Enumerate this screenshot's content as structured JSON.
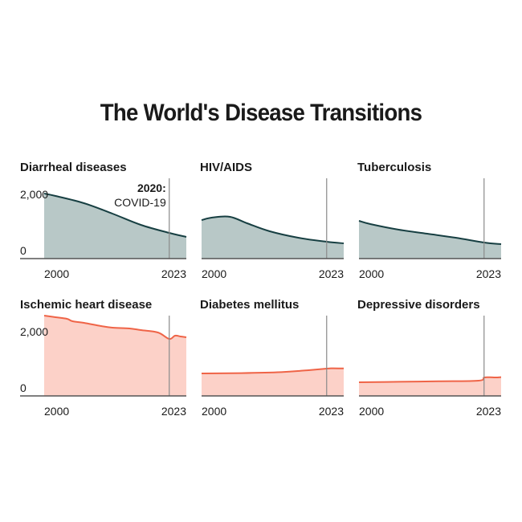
{
  "title": "The World's Disease Transitions",
  "chart_data": [
    {
      "type": "area",
      "title": "Diarrheal diseases",
      "group": "communicable",
      "x": [
        1998,
        2000,
        2005,
        2010,
        2015,
        2020,
        2023
      ],
      "values": [
        2025,
        1950,
        1725,
        1400,
        1050,
        800,
        675
      ],
      "ylim": [
        0,
        2000
      ],
      "yticks": [
        "0",
        "2,000"
      ],
      "xticks": [
        "2000",
        "2023"
      ],
      "marker_year": 2020,
      "annotation": {
        "bold": "2020:",
        "text": "COVID-19"
      }
    },
    {
      "type": "area",
      "title": "HIV/AIDS",
      "group": "communicable",
      "x": [
        1998,
        2000,
        2003,
        2006,
        2010,
        2015,
        2020,
        2023
      ],
      "values": [
        1200,
        1280,
        1300,
        1100,
        850,
        650,
        525,
        475
      ],
      "ylim": [
        0,
        2000
      ],
      "yticks": [],
      "xticks": [
        "2000",
        "2023"
      ],
      "marker_year": 2020
    },
    {
      "type": "area",
      "title": "Tuberculosis",
      "group": "communicable",
      "x": [
        1998,
        2000,
        2005,
        2010,
        2015,
        2020,
        2023
      ],
      "values": [
        1175,
        1075,
        900,
        775,
        650,
        500,
        450
      ],
      "ylim": [
        0,
        2000
      ],
      "yticks": [],
      "xticks": [
        "2000",
        "2023"
      ],
      "marker_year": 2020
    },
    {
      "type": "area",
      "title": "Ischemic heart disease",
      "group": "noncommunicable",
      "x": [
        1998,
        2000,
        2002,
        2003,
        2005,
        2008,
        2010,
        2013,
        2015,
        2018,
        2020,
        2021,
        2022,
        2023
      ],
      "values": [
        2500,
        2450,
        2400,
        2325,
        2275,
        2175,
        2125,
        2100,
        2050,
        1975,
        1775,
        1875,
        1850,
        1825
      ],
      "ylim": [
        0,
        2000
      ],
      "yticks": [
        "0",
        "2,000"
      ],
      "xticks": [
        "2000",
        "2023"
      ],
      "marker_year": 2020
    },
    {
      "type": "area",
      "title": "Diabetes mellitus",
      "group": "noncommunicable",
      "x": [
        1998,
        2005,
        2012,
        2016,
        2020,
        2021,
        2023
      ],
      "values": [
        700,
        710,
        740,
        790,
        850,
        860,
        855
      ],
      "ylim": [
        0,
        2000
      ],
      "yticks": [],
      "xticks": [
        "2000",
        "2023"
      ],
      "marker_year": 2020
    },
    {
      "type": "area",
      "title": "Depressive disorders",
      "group": "noncommunicable",
      "x": [
        1998,
        2005,
        2012,
        2019,
        2020,
        2021,
        2022,
        2023
      ],
      "values": [
        425,
        440,
        455,
        475,
        570,
        580,
        575,
        585
      ],
      "ylim": [
        0,
        2000
      ],
      "yticks": [],
      "xticks": [
        "2000",
        "2023"
      ],
      "marker_year": 2020
    }
  ],
  "colors": {
    "communicable_fill": "#b8c8c7",
    "communicable_line": "#173f42",
    "noncommunicable_fill": "#fcd1c8",
    "noncommunicable_line": "#ef6447",
    "axis": "#555555",
    "marker": "#8a8a8a"
  }
}
